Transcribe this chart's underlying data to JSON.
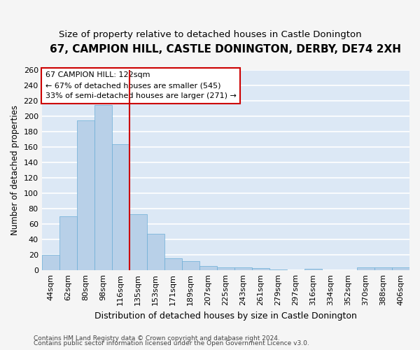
{
  "title": "67, CAMPION HILL, CASTLE DONINGTON, DERBY, DE74 2XH",
  "subtitle": "Size of property relative to detached houses in Castle Donington",
  "xlabel": "Distribution of detached houses by size in Castle Donington",
  "ylabel": "Number of detached properties",
  "footer_line1": "Contains HM Land Registry data © Crown copyright and database right 2024.",
  "footer_line2": "Contains public sector information licensed under the Open Government Licence v3.0.",
  "bar_labels": [
    "44sqm",
    "62sqm",
    "80sqm",
    "98sqm",
    "116sqm",
    "135sqm",
    "153sqm",
    "171sqm",
    "189sqm",
    "207sqm",
    "225sqm",
    "243sqm",
    "261sqm",
    "279sqm",
    "297sqm",
    "316sqm",
    "334sqm",
    "352sqm",
    "370sqm",
    "388sqm",
    "406sqm"
  ],
  "bar_values": [
    20,
    70,
    194,
    214,
    163,
    73,
    47,
    16,
    12,
    6,
    4,
    4,
    3,
    1,
    0,
    2,
    0,
    0,
    4,
    4,
    4
  ],
  "bar_color": "#b8d0e8",
  "bar_edge_color": "#6baed6",
  "vline_x": 4.5,
  "vline_color": "#cc0000",
  "annotation_line1": "67 CAMPION HILL: 122sqm",
  "annotation_line2": "← 67% of detached houses are smaller (545)",
  "annotation_line3": "33% of semi-detached houses are larger (271) →",
  "annotation_box_color": "white",
  "annotation_box_edge": "#cc0000",
  "ylim": [
    0,
    260
  ],
  "yticks": [
    0,
    20,
    40,
    60,
    80,
    100,
    120,
    140,
    160,
    180,
    200,
    220,
    240,
    260
  ],
  "background_color": "#dce8f5",
  "grid_color": "white",
  "fig_bg_color": "#f5f5f5",
  "title_fontsize": 11,
  "subtitle_fontsize": 9.5,
  "xlabel_fontsize": 9,
  "ylabel_fontsize": 8.5,
  "tick_fontsize": 8,
  "annotation_fontsize": 8,
  "footer_fontsize": 6.5
}
